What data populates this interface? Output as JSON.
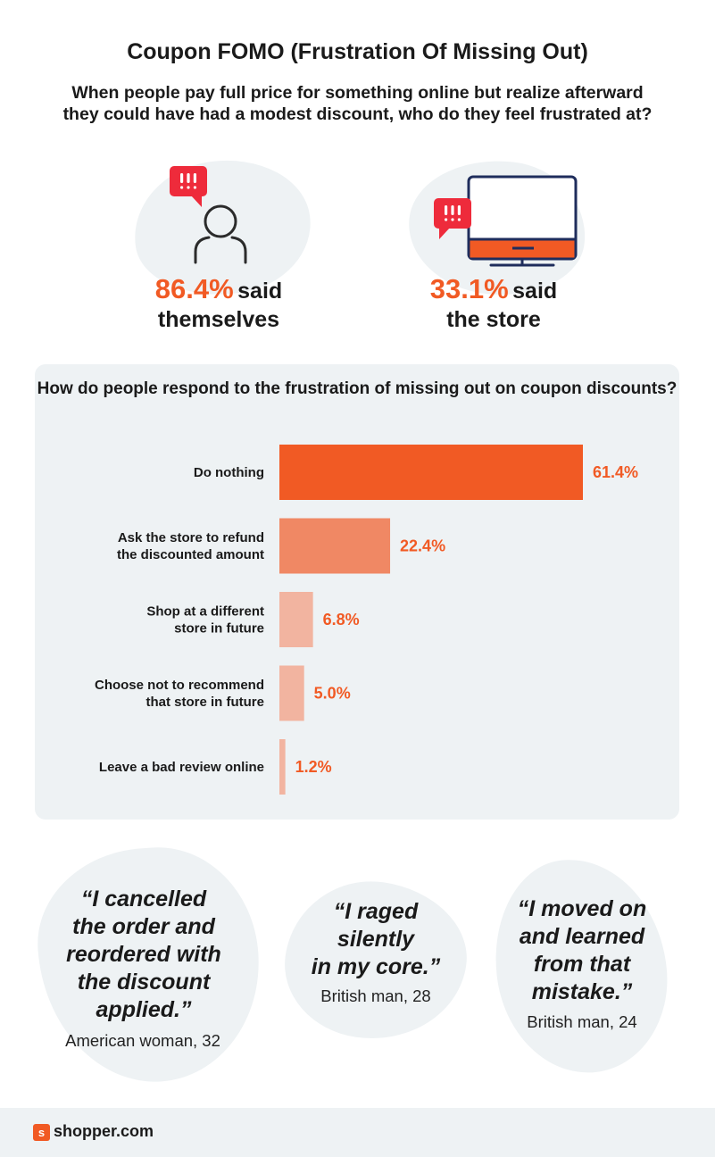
{
  "header": {
    "title": "Coupon FOMO (Frustration Of Missing Out)",
    "subtitle": "When people pay full price for something online but realize afterward they could have had a modest discount, who do they feel frustrated at?"
  },
  "stats": [
    {
      "value": "86.4%",
      "said": "said",
      "who": "themselves",
      "icon": "person-icon"
    },
    {
      "value": "33.1%",
      "said": "said",
      "who": "the store",
      "icon": "monitor-icon"
    }
  ],
  "colors": {
    "accent": "#f15a24",
    "bar_strong": "#f15a24",
    "bar_medium": "#f08864",
    "bar_light": "#f2b4a0",
    "panel_bg": "#eef2f4",
    "alert_red": "#ee2b3b",
    "monitor_navy": "#1f2d5c"
  },
  "chart_data": {
    "type": "bar",
    "orientation": "horizontal",
    "title": "How do people respond to the frustration of missing out on coupon discounts?",
    "categories": [
      "Do nothing",
      "Ask the store to refund the discounted amount",
      "Shop at a different store in future",
      "Choose not to recommend that store in future",
      "Leave a bad review online"
    ],
    "category_lines": [
      [
        "Do nothing"
      ],
      [
        "Ask the store to refund",
        "the discounted amount"
      ],
      [
        "Shop at a different",
        "store in future"
      ],
      [
        "Choose not to recommend",
        "that store in future"
      ],
      [
        "Leave a bad review online"
      ]
    ],
    "values": [
      61.4,
      22.4,
      6.8,
      5.0,
      1.2
    ],
    "value_labels": [
      "61.4%",
      "22.4%",
      "6.8%",
      "5.0%",
      "1.2%"
    ],
    "unit": "%",
    "grid": false,
    "legend": "none"
  },
  "quotes": [
    {
      "text": "“I cancelled the order and reordered with the discount applied.”",
      "lines": [
        "“I cancelled",
        "the order and",
        "reordered with",
        "the discount",
        "applied.”"
      ],
      "attribution": "American woman, 32"
    },
    {
      "text": "“I raged silently in my core.”",
      "lines": [
        "“I raged",
        "silently",
        "in my core.”"
      ],
      "attribution": "British man, 28"
    },
    {
      "text": "“I moved on and learned from that mistake.”",
      "lines": [
        "“I moved on",
        "and learned",
        "from that",
        "mistake.”"
      ],
      "attribution": "British man, 24"
    }
  ],
  "footer": {
    "brand_icon": "s",
    "brand": "shopper.com"
  }
}
